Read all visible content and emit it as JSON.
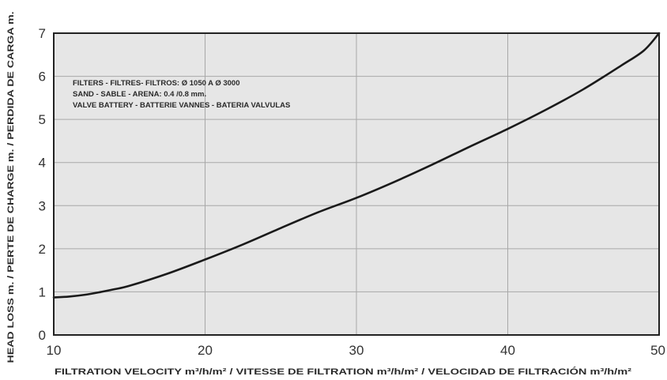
{
  "chart_data": {
    "type": "line",
    "xlabel": "FILTRATION VELOCITY m³/h/m² / VITESSE DE FILTRATION m³/h/m² / VELOCIDAD DE FILTRACIÓN m³/h/m²",
    "ylabel": "HEAD LOSS m. / PERTE DE CHARGE m. / PERDIDA DE CARGA m.",
    "xlim": [
      10,
      50
    ],
    "ylim": [
      0,
      7
    ],
    "x_ticks": [
      "10",
      "20",
      "30",
      "40",
      "50"
    ],
    "y_ticks": [
      "0",
      "1",
      "2",
      "3",
      "4",
      "5",
      "6",
      "7"
    ],
    "grid": true,
    "annotations": [
      "FILTERS - FILTRES-  FILTROS: Ø 1050 A Ø 3000",
      "SAND - SABLE - ARENA: 0.4 /0.8 mm.",
      "VALVE BATTERY - BATTERIE VANNES - BATERIA VALVULAS"
    ],
    "series": [
      {
        "x": [
          10,
          11,
          12,
          13,
          14,
          15,
          17.5,
          20,
          22.5,
          25,
          27.5,
          30,
          32.5,
          35,
          37.5,
          40,
          42.5,
          45,
          47.5,
          49,
          50
        ],
        "y": [
          0.87,
          0.89,
          0.93,
          0.99,
          1.06,
          1.14,
          1.42,
          1.75,
          2.1,
          2.48,
          2.85,
          3.18,
          3.55,
          3.95,
          4.37,
          4.78,
          5.22,
          5.7,
          6.25,
          6.6,
          7.0
        ]
      }
    ],
    "colors": {
      "plot_bg": "#e6e6e6",
      "line": "#1a1a1a",
      "grid": "#a8a8a8",
      "frame": "#222222"
    }
  }
}
